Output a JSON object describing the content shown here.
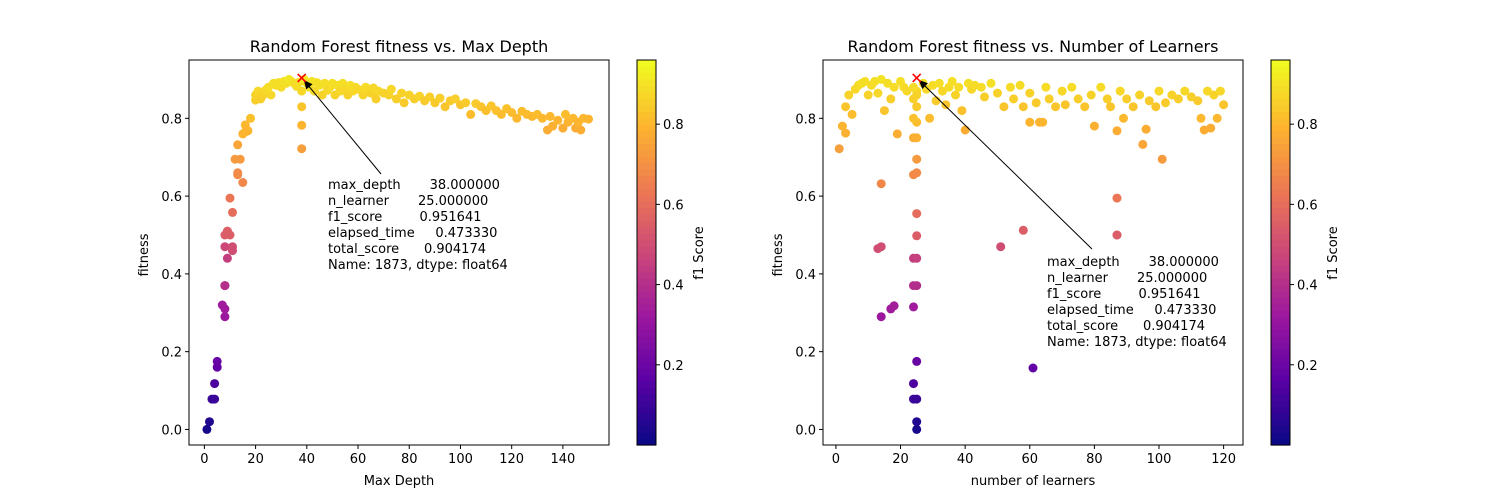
{
  "figure": {
    "background": "#ffffff"
  },
  "colormap": {
    "name": "plasma",
    "stops": [
      "#0d0887",
      "#5c01a6",
      "#9c179e",
      "#cc4778",
      "#ed7953",
      "#fdb42f",
      "#f0f921"
    ]
  },
  "annotation_lines": [
    "max_depth       38.000000",
    "n_learner       25.000000",
    "f1_score         0.951641",
    "elapsed_time     0.473330",
    "total_score      0.904174",
    "Name: 1873, dtype: float64"
  ],
  "chart_data": [
    {
      "type": "scatter",
      "title": "Random Forest fitness vs. Max Depth",
      "xlabel": "Max Depth",
      "ylabel": "fitness",
      "xlim": [
        -6,
        158
      ],
      "ylim": [
        -0.04,
        0.95
      ],
      "xticks": [
        0,
        20,
        40,
        60,
        80,
        100,
        120,
        140
      ],
      "yticks": [
        0.0,
        0.2,
        0.4,
        0.6,
        0.8
      ],
      "ytick_labels": [
        "0.0",
        "0.2",
        "0.4",
        "0.6",
        "0.8"
      ],
      "colorbar": {
        "label": "f1 Score",
        "range": [
          0.0,
          0.96
        ],
        "ticks": [
          0.2,
          0.4,
          0.6,
          0.8
        ]
      },
      "best_point": {
        "x": 38,
        "y": 0.904,
        "marker": "x",
        "color": "#ff0000"
      },
      "points": [
        [
          1,
          0.0,
          0.02
        ],
        [
          2,
          0.02,
          0.04
        ],
        [
          3,
          0.078,
          0.09
        ],
        [
          4,
          0.078,
          0.09
        ],
        [
          4,
          0.118,
          0.13
        ],
        [
          5,
          0.16,
          0.17
        ],
        [
          5,
          0.175,
          0.19
        ],
        [
          7,
          0.32,
          0.33
        ],
        [
          8,
          0.29,
          0.32
        ],
        [
          8,
          0.31,
          0.33
        ],
        [
          8,
          0.37,
          0.4
        ],
        [
          8,
          0.37,
          0.4
        ],
        [
          9,
          0.44,
          0.45
        ],
        [
          8,
          0.47,
          0.48
        ],
        [
          8,
          0.5,
          0.55
        ],
        [
          9,
          0.51,
          0.56
        ],
        [
          10,
          0.5,
          0.55
        ],
        [
          11,
          0.47,
          0.5
        ],
        [
          11,
          0.46,
          0.5
        ],
        [
          10,
          0.595,
          0.63
        ],
        [
          11,
          0.558,
          0.6
        ],
        [
          12,
          0.695,
          0.73
        ],
        [
          13,
          0.732,
          0.76
        ],
        [
          13,
          0.66,
          0.69
        ],
        [
          14,
          0.695,
          0.73
        ],
        [
          13,
          0.655,
          0.69
        ],
        [
          15,
          0.635,
          0.68
        ],
        [
          15,
          0.76,
          0.8
        ],
        [
          16,
          0.783,
          0.81
        ],
        [
          16,
          0.765,
          0.8
        ],
        [
          17,
          0.768,
          0.8
        ],
        [
          18,
          0.8,
          0.83
        ],
        [
          20,
          0.847,
          0.86
        ],
        [
          20,
          0.86,
          0.87
        ],
        [
          21,
          0.87,
          0.88
        ],
        [
          22,
          0.85,
          0.86
        ],
        [
          23,
          0.86,
          0.87
        ],
        [
          24,
          0.873,
          0.88
        ],
        [
          25,
          0.88,
          0.89
        ],
        [
          26,
          0.86,
          0.88
        ],
        [
          27,
          0.89,
          0.9
        ],
        [
          28,
          0.885,
          0.9
        ],
        [
          29,
          0.892,
          0.9
        ],
        [
          30,
          0.88,
          0.89
        ],
        [
          31,
          0.895,
          0.91
        ],
        [
          32,
          0.89,
          0.9
        ],
        [
          33,
          0.9,
          0.92
        ],
        [
          34,
          0.895,
          0.91
        ],
        [
          35,
          0.89,
          0.9
        ],
        [
          36,
          0.882,
          0.89
        ],
        [
          37,
          0.893,
          0.9
        ],
        [
          38,
          0.83,
          0.84
        ],
        [
          38,
          0.782,
          0.8
        ],
        [
          38,
          0.722,
          0.74
        ],
        [
          38,
          0.87,
          0.88
        ],
        [
          39,
          0.9,
          0.92
        ],
        [
          40,
          0.89,
          0.91
        ],
        [
          41,
          0.88,
          0.9
        ],
        [
          42,
          0.895,
          0.91
        ],
        [
          43,
          0.87,
          0.88
        ],
        [
          44,
          0.892,
          0.9
        ],
        [
          45,
          0.885,
          0.9
        ],
        [
          46,
          0.86,
          0.87
        ],
        [
          47,
          0.89,
          0.9
        ],
        [
          48,
          0.872,
          0.88
        ],
        [
          49,
          0.88,
          0.89
        ],
        [
          50,
          0.89,
          0.9
        ],
        [
          51,
          0.86,
          0.87
        ],
        [
          52,
          0.885,
          0.9
        ],
        [
          53,
          0.87,
          0.88
        ],
        [
          54,
          0.89,
          0.9
        ],
        [
          55,
          0.875,
          0.88
        ],
        [
          56,
          0.86,
          0.87
        ],
        [
          57,
          0.885,
          0.9
        ],
        [
          58,
          0.87,
          0.88
        ],
        [
          59,
          0.88,
          0.89
        ],
        [
          60,
          0.875,
          0.88
        ],
        [
          62,
          0.86,
          0.87
        ],
        [
          63,
          0.88,
          0.89
        ],
        [
          64,
          0.87,
          0.88
        ],
        [
          65,
          0.865,
          0.87
        ],
        [
          66,
          0.878,
          0.88
        ],
        [
          67,
          0.85,
          0.86
        ],
        [
          68,
          0.87,
          0.88
        ],
        [
          70,
          0.865,
          0.87
        ],
        [
          72,
          0.86,
          0.87
        ],
        [
          73,
          0.875,
          0.88
        ],
        [
          75,
          0.85,
          0.86
        ],
        [
          77,
          0.865,
          0.87
        ],
        [
          78,
          0.84,
          0.85
        ],
        [
          80,
          0.86,
          0.87
        ],
        [
          82,
          0.85,
          0.86
        ],
        [
          84,
          0.857,
          0.87
        ],
        [
          86,
          0.845,
          0.85
        ],
        [
          88,
          0.855,
          0.86
        ],
        [
          90,
          0.84,
          0.85
        ],
        [
          92,
          0.852,
          0.86
        ],
        [
          94,
          0.83,
          0.84
        ],
        [
          96,
          0.845,
          0.85
        ],
        [
          98,
          0.85,
          0.86
        ],
        [
          100,
          0.835,
          0.84
        ],
        [
          102,
          0.84,
          0.85
        ],
        [
          104,
          0.81,
          0.82
        ],
        [
          106,
          0.838,
          0.85
        ],
        [
          108,
          0.83,
          0.84
        ],
        [
          110,
          0.82,
          0.83
        ],
        [
          112,
          0.832,
          0.84
        ],
        [
          114,
          0.82,
          0.83
        ],
        [
          116,
          0.81,
          0.82
        ],
        [
          118,
          0.825,
          0.83
        ],
        [
          120,
          0.815,
          0.82
        ],
        [
          122,
          0.8,
          0.81
        ],
        [
          124,
          0.818,
          0.82
        ],
        [
          126,
          0.81,
          0.82
        ],
        [
          128,
          0.805,
          0.81
        ],
        [
          130,
          0.81,
          0.82
        ],
        [
          132,
          0.8,
          0.81
        ],
        [
          134,
          0.77,
          0.78
        ],
        [
          135,
          0.805,
          0.81
        ],
        [
          136,
          0.78,
          0.79
        ],
        [
          138,
          0.795,
          0.8
        ],
        [
          140,
          0.775,
          0.78
        ],
        [
          141,
          0.81,
          0.82
        ],
        [
          142,
          0.79,
          0.8
        ],
        [
          144,
          0.8,
          0.81
        ],
        [
          145,
          0.775,
          0.78
        ],
        [
          146,
          0.79,
          0.8
        ],
        [
          147,
          0.77,
          0.78
        ],
        [
          148,
          0.8,
          0.81
        ],
        [
          150,
          0.798,
          0.8
        ]
      ]
    },
    {
      "type": "scatter",
      "title": "Random Forest fitness vs. Number of Learners",
      "xlabel": "number of learners",
      "ylabel": "fitness",
      "xlim": [
        -4,
        126
      ],
      "ylim": [
        -0.04,
        0.95
      ],
      "xticks": [
        0,
        20,
        40,
        60,
        80,
        100,
        120
      ],
      "yticks": [
        0.0,
        0.2,
        0.4,
        0.6,
        0.8
      ],
      "ytick_labels": [
        "0.0",
        "0.2",
        "0.4",
        "0.6",
        "0.8"
      ],
      "colorbar": {
        "label": "f1 Score",
        "range": [
          0.0,
          0.96
        ],
        "ticks": [
          0.2,
          0.4,
          0.6,
          0.8
        ]
      },
      "best_point": {
        "x": 25,
        "y": 0.904,
        "marker": "x",
        "color": "#ff0000"
      },
      "points": [
        [
          25,
          0.0,
          0.02
        ],
        [
          25,
          0.02,
          0.04
        ],
        [
          25,
          0.078,
          0.09
        ],
        [
          24,
          0.078,
          0.09
        ],
        [
          24,
          0.118,
          0.13
        ],
        [
          25,
          0.175,
          0.19
        ],
        [
          24,
          0.315,
          0.33
        ],
        [
          25,
          0.37,
          0.4
        ],
        [
          24,
          0.37,
          0.4
        ],
        [
          24,
          0.44,
          0.45
        ],
        [
          25,
          0.44,
          0.46
        ],
        [
          25,
          0.498,
          0.55
        ],
        [
          25,
          0.555,
          0.6
        ],
        [
          24,
          0.655,
          0.69
        ],
        [
          25,
          0.695,
          0.73
        ],
        [
          25,
          0.66,
          0.69
        ],
        [
          24,
          0.75,
          0.78
        ],
        [
          25,
          0.75,
          0.79
        ],
        [
          25,
          0.79,
          0.82
        ],
        [
          24,
          0.8,
          0.83
        ],
        [
          25,
          0.83,
          0.85
        ],
        [
          24,
          0.85,
          0.86
        ],
        [
          25,
          0.87,
          0.88
        ],
        [
          24,
          0.88,
          0.89
        ],
        [
          25,
          0.86,
          0.87
        ],
        [
          13,
          0.465,
          0.5
        ],
        [
          14,
          0.47,
          0.5
        ],
        [
          14,
          0.29,
          0.32
        ],
        [
          17,
          0.31,
          0.33
        ],
        [
          18,
          0.318,
          0.34
        ],
        [
          14,
          0.632,
          0.68
        ],
        [
          51,
          0.47,
          0.5
        ],
        [
          58,
          0.512,
          0.55
        ],
        [
          61,
          0.158,
          0.17
        ],
        [
          87,
          0.5,
          0.55
        ],
        [
          87,
          0.5,
          0.55
        ],
        [
          87,
          0.595,
          0.63
        ],
        [
          101,
          0.695,
          0.73
        ],
        [
          95,
          0.733,
          0.76
        ],
        [
          1,
          0.722,
          0.74
        ],
        [
          2,
          0.78,
          0.8
        ],
        [
          3,
          0.762,
          0.79
        ],
        [
          3,
          0.83,
          0.84
        ],
        [
          4,
          0.86,
          0.87
        ],
        [
          5,
          0.81,
          0.82
        ],
        [
          6,
          0.875,
          0.88
        ],
        [
          7,
          0.885,
          0.89
        ],
        [
          8,
          0.89,
          0.9
        ],
        [
          9,
          0.895,
          0.9
        ],
        [
          10,
          0.86,
          0.87
        ],
        [
          11,
          0.885,
          0.89
        ],
        [
          12,
          0.895,
          0.9
        ],
        [
          13,
          0.865,
          0.88
        ],
        [
          14,
          0.9,
          0.91
        ],
        [
          15,
          0.82,
          0.84
        ],
        [
          16,
          0.89,
          0.9
        ],
        [
          17,
          0.85,
          0.86
        ],
        [
          18,
          0.88,
          0.89
        ],
        [
          19,
          0.76,
          0.78
        ],
        [
          20,
          0.895,
          0.9
        ],
        [
          21,
          0.88,
          0.89
        ],
        [
          22,
          0.87,
          0.88
        ],
        [
          27,
          0.89,
          0.9
        ],
        [
          28,
          0.875,
          0.88
        ],
        [
          29,
          0.8,
          0.82
        ],
        [
          30,
          0.885,
          0.89
        ],
        [
          31,
          0.845,
          0.85
        ],
        [
          32,
          0.89,
          0.9
        ],
        [
          33,
          0.87,
          0.88
        ],
        [
          34,
          0.835,
          0.84
        ],
        [
          35,
          0.88,
          0.89
        ],
        [
          36,
          0.895,
          0.9
        ],
        [
          37,
          0.86,
          0.87
        ],
        [
          38,
          0.88,
          0.89
        ],
        [
          39,
          0.82,
          0.83
        ],
        [
          40,
          0.77,
          0.78
        ],
        [
          41,
          0.89,
          0.9
        ],
        [
          42,
          0.875,
          0.88
        ],
        [
          43,
          0.885,
          0.89
        ],
        [
          45,
          0.88,
          0.89
        ],
        [
          46,
          0.855,
          0.86
        ],
        [
          48,
          0.89,
          0.9
        ],
        [
          50,
          0.865,
          0.87
        ],
        [
          52,
          0.83,
          0.84
        ],
        [
          54,
          0.88,
          0.89
        ],
        [
          55,
          0.85,
          0.86
        ],
        [
          57,
          0.885,
          0.89
        ],
        [
          58,
          0.83,
          0.84
        ],
        [
          60,
          0.79,
          0.8
        ],
        [
          60,
          0.865,
          0.87
        ],
        [
          62,
          0.84,
          0.85
        ],
        [
          63,
          0.79,
          0.8
        ],
        [
          64,
          0.79,
          0.8
        ],
        [
          65,
          0.88,
          0.89
        ],
        [
          66,
          0.85,
          0.86
        ],
        [
          68,
          0.83,
          0.84
        ],
        [
          70,
          0.87,
          0.88
        ],
        [
          71,
          0.835,
          0.84
        ],
        [
          73,
          0.88,
          0.89
        ],
        [
          75,
          0.85,
          0.86
        ],
        [
          77,
          0.83,
          0.84
        ],
        [
          79,
          0.86,
          0.87
        ],
        [
          80,
          0.78,
          0.79
        ],
        [
          82,
          0.88,
          0.89
        ],
        [
          84,
          0.85,
          0.86
        ],
        [
          85,
          0.83,
          0.84
        ],
        [
          87,
          0.768,
          0.78
        ],
        [
          88,
          0.87,
          0.88
        ],
        [
          89,
          0.8,
          0.81
        ],
        [
          90,
          0.85,
          0.86
        ],
        [
          92,
          0.83,
          0.84
        ],
        [
          94,
          0.86,
          0.87
        ],
        [
          96,
          0.772,
          0.78
        ],
        [
          97,
          0.845,
          0.85
        ],
        [
          99,
          0.83,
          0.84
        ],
        [
          100,
          0.87,
          0.88
        ],
        [
          102,
          0.84,
          0.85
        ],
        [
          104,
          0.86,
          0.87
        ],
        [
          106,
          0.85,
          0.86
        ],
        [
          108,
          0.87,
          0.88
        ],
        [
          110,
          0.855,
          0.86
        ],
        [
          112,
          0.845,
          0.85
        ],
        [
          113,
          0.8,
          0.81
        ],
        [
          114,
          0.77,
          0.78
        ],
        [
          115,
          0.87,
          0.88
        ],
        [
          116,
          0.775,
          0.78
        ],
        [
          117,
          0.86,
          0.87
        ],
        [
          118,
          0.8,
          0.81
        ],
        [
          119,
          0.87,
          0.88
        ],
        [
          120,
          0.835,
          0.84
        ]
      ]
    }
  ]
}
